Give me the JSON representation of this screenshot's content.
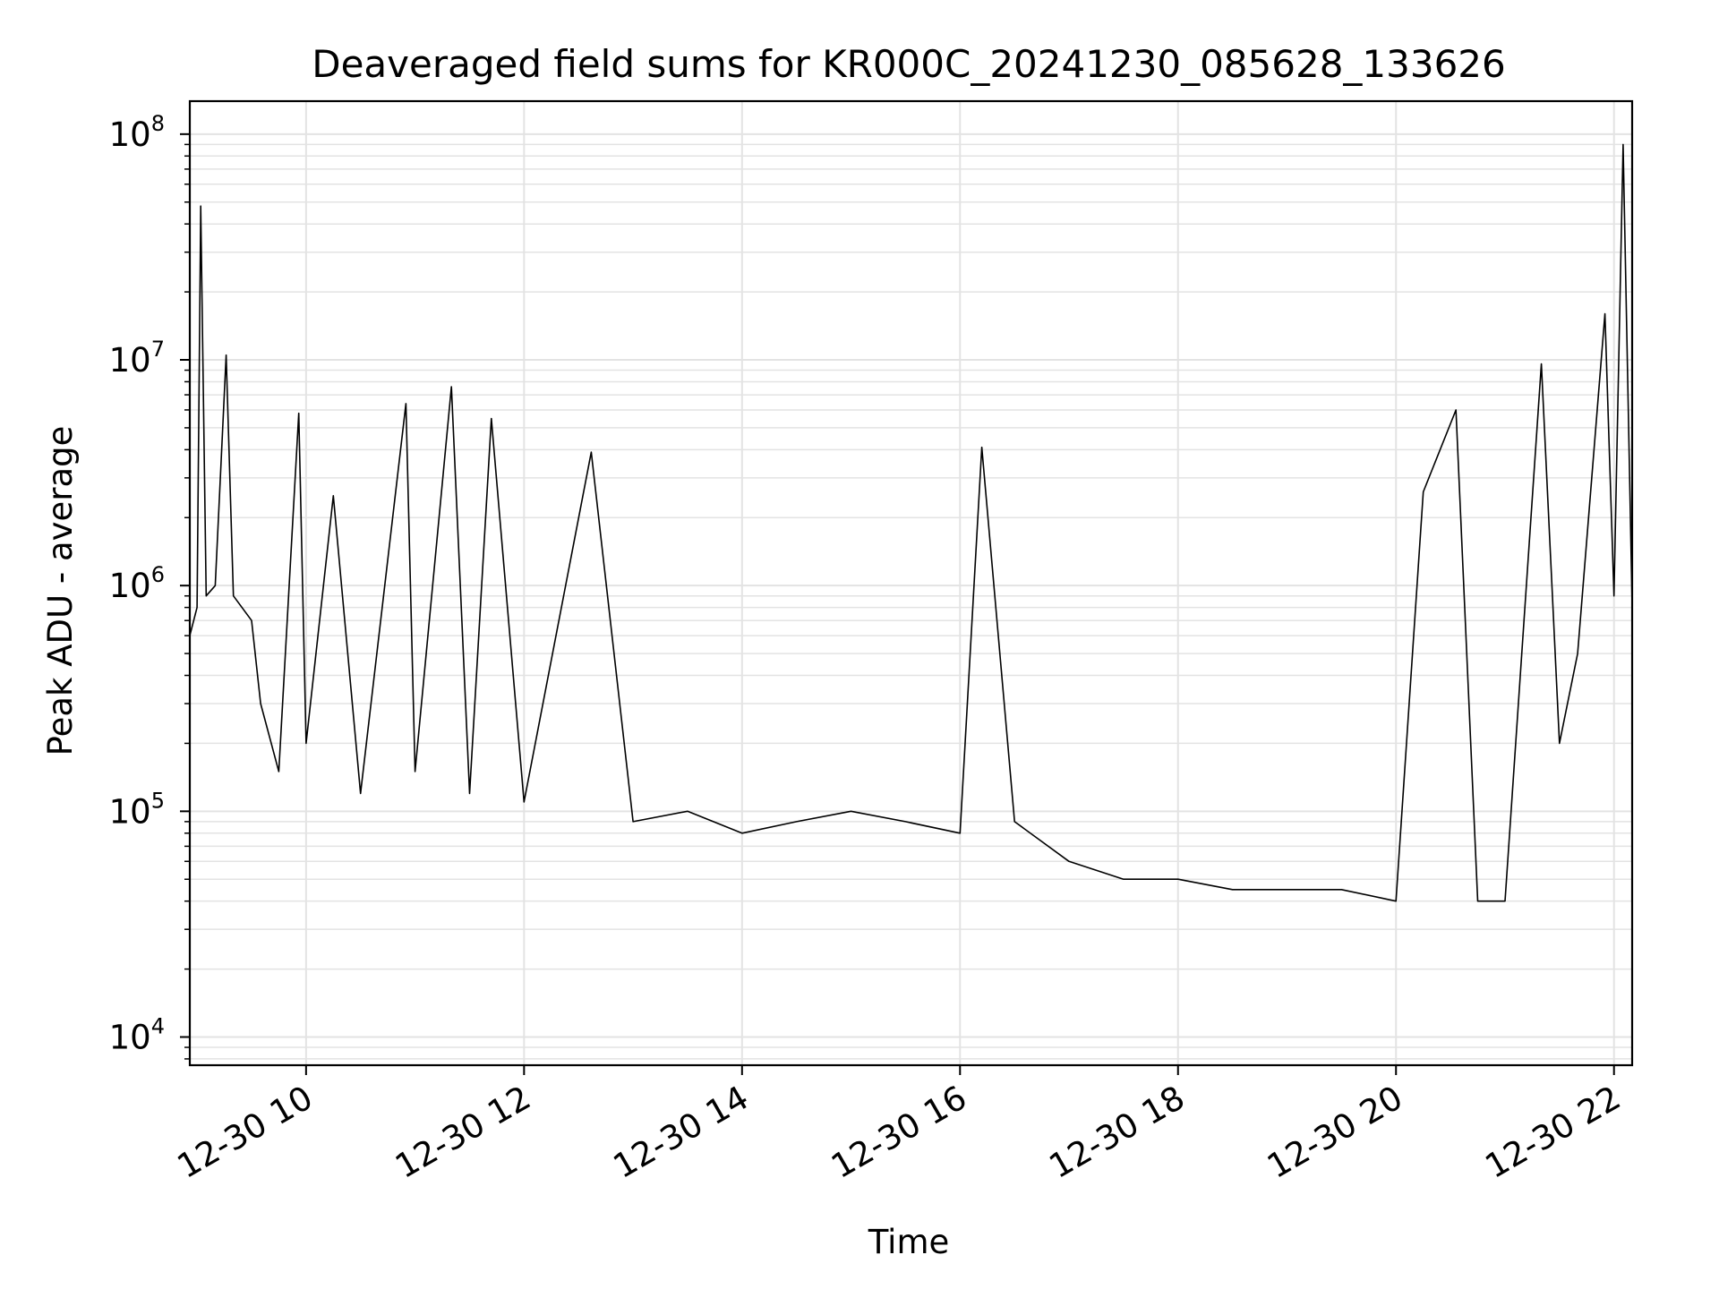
{
  "chart_data": {
    "type": "line",
    "title": "Deaveraged field sums for KR000C_20241230_085628_133626",
    "xlabel": "Time",
    "ylabel": "Peak ADU - average",
    "yscale": "log",
    "grid": true,
    "xlim": [
      "2024-12-30 08:56",
      "2024-12-30 22:10"
    ],
    "ylim": [
      7500,
      140000000
    ],
    "x_ticks": [
      {
        "value": "2024-12-30 10:00",
        "label": "12-30 10"
      },
      {
        "value": "2024-12-30 12:00",
        "label": "12-30 12"
      },
      {
        "value": "2024-12-30 14:00",
        "label": "12-30 14"
      },
      {
        "value": "2024-12-30 16:00",
        "label": "12-30 16"
      },
      {
        "value": "2024-12-30 18:00",
        "label": "12-30 18"
      },
      {
        "value": "2024-12-30 20:00",
        "label": "12-30 20"
      },
      {
        "value": "2024-12-30 22:00",
        "label": "12-30 22"
      }
    ],
    "y_ticks": [
      {
        "value": 10000,
        "base": "10",
        "exp": "4"
      },
      {
        "value": 100000,
        "base": "10",
        "exp": "5"
      },
      {
        "value": 1000000,
        "base": "10",
        "exp": "6"
      },
      {
        "value": 10000000,
        "base": "10",
        "exp": "7"
      },
      {
        "value": 100000000,
        "base": "10",
        "exp": "8"
      }
    ],
    "series": [
      {
        "color": "#000000",
        "points": [
          [
            "2024-12-30 08:56",
            600000
          ],
          [
            "2024-12-30 09:00",
            800000
          ],
          [
            "2024-12-30 09:02",
            48000000
          ],
          [
            "2024-12-30 09:05",
            900000
          ],
          [
            "2024-12-30 09:10",
            1000000
          ],
          [
            "2024-12-30 09:16",
            10500000
          ],
          [
            "2024-12-30 09:20",
            900000
          ],
          [
            "2024-12-30 09:30",
            700000
          ],
          [
            "2024-12-30 09:35",
            300000
          ],
          [
            "2024-12-30 09:45",
            150000
          ],
          [
            "2024-12-30 09:56",
            5800000
          ],
          [
            "2024-12-30 10:00",
            200000
          ],
          [
            "2024-12-30 10:15",
            2500000
          ],
          [
            "2024-12-30 10:30",
            120000
          ],
          [
            "2024-12-30 10:55",
            6400000
          ],
          [
            "2024-12-30 11:00",
            150000
          ],
          [
            "2024-12-30 11:20",
            7600000
          ],
          [
            "2024-12-30 11:30",
            120000
          ],
          [
            "2024-12-30 11:42",
            5500000
          ],
          [
            "2024-12-30 12:00",
            110000
          ],
          [
            "2024-12-30 12:37",
            3900000
          ],
          [
            "2024-12-30 13:00",
            90000
          ],
          [
            "2024-12-30 13:30",
            100000
          ],
          [
            "2024-12-30 14:00",
            80000
          ],
          [
            "2024-12-30 14:30",
            90000
          ],
          [
            "2024-12-30 15:00",
            100000
          ],
          [
            "2024-12-30 15:30",
            90000
          ],
          [
            "2024-12-30 16:00",
            80000
          ],
          [
            "2024-12-30 16:12",
            4100000
          ],
          [
            "2024-12-30 16:30",
            90000
          ],
          [
            "2024-12-30 17:00",
            60000
          ],
          [
            "2024-12-30 17:30",
            50000
          ],
          [
            "2024-12-30 18:00",
            50000
          ],
          [
            "2024-12-30 18:30",
            45000
          ],
          [
            "2024-12-30 19:00",
            45000
          ],
          [
            "2024-12-30 19:30",
            45000
          ],
          [
            "2024-12-30 20:00",
            40000
          ],
          [
            "2024-12-30 20:15",
            2600000
          ],
          [
            "2024-12-30 20:33",
            6000000
          ],
          [
            "2024-12-30 20:45",
            40000
          ],
          [
            "2024-12-30 21:00",
            40000
          ],
          [
            "2024-12-30 21:20",
            9600000
          ],
          [
            "2024-12-30 21:30",
            200000
          ],
          [
            "2024-12-30 21:40",
            500000
          ],
          [
            "2024-12-30 21:55",
            16000000
          ],
          [
            "2024-12-30 22:00",
            900000
          ],
          [
            "2024-12-30 22:05",
            90000000
          ],
          [
            "2024-12-30 22:10",
            800000
          ]
        ]
      }
    ]
  }
}
